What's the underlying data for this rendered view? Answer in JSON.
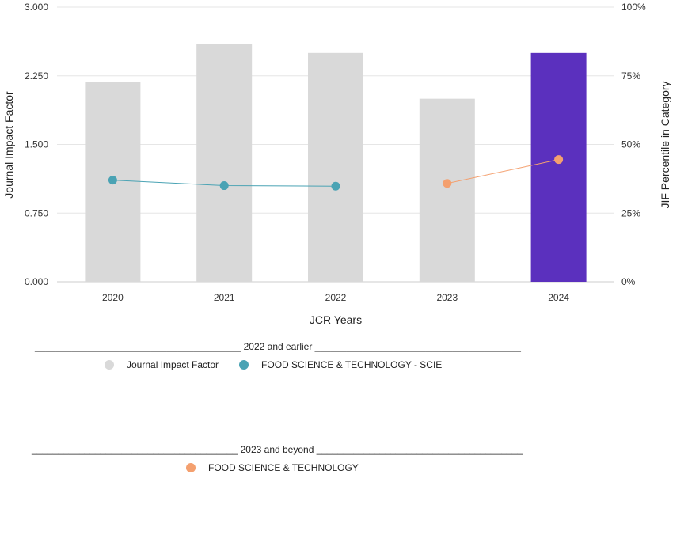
{
  "chart_data": {
    "type": "bar",
    "categories": [
      "2020",
      "2021",
      "2022",
      "2023",
      "2024"
    ],
    "series": [
      {
        "name": "Journal Impact Factor",
        "type": "bar",
        "axis": "left",
        "values": [
          2.18,
          2.6,
          2.5,
          2.0,
          2.5
        ],
        "colors": [
          "#d9d9d9",
          "#d9d9d9",
          "#d9d9d9",
          "#d9d9d9",
          "#5b30be"
        ]
      },
      {
        "name": "FOOD SCIENCE & TECHNOLOGY - SCIE",
        "type": "line",
        "axis": "right",
        "unit": "percent",
        "color": "#4aa3b4",
        "points": [
          {
            "x": "2020",
            "y": 37
          },
          {
            "x": "2021",
            "y": 35
          },
          {
            "x": "2022",
            "y": 34.8
          }
        ]
      },
      {
        "name": "FOOD SCIENCE & TECHNOLOGY",
        "type": "line",
        "axis": "right",
        "unit": "percent",
        "color": "#f4a06f",
        "points": [
          {
            "x": "2023",
            "y": 35.8
          },
          {
            "x": "2024",
            "y": 44.5
          }
        ]
      }
    ],
    "ylabel": "Journal Impact Factor",
    "y2label": "JIF Percentile in Category",
    "xlabel": "JCR Years",
    "ylim": [
      0,
      3
    ],
    "y2lim": [
      0,
      100
    ],
    "yticks": [
      "0.000",
      "0.750",
      "1.500",
      "2.250",
      "3.000"
    ],
    "y2ticks": [
      "0%",
      "25%",
      "50%",
      "75%",
      "100%"
    ],
    "grid": true
  },
  "legend": {
    "group1_label": "_______________________________________ 2022 and earlier _______________________________________",
    "group1_items": [
      {
        "label": "Journal Impact Factor",
        "color": "#d9d9d9"
      },
      {
        "label": "FOOD SCIENCE & TECHNOLOGY - SCIE",
        "color": "#4aa3b4"
      }
    ],
    "group2_label": "_______________________________________ 2023 and beyond _______________________________________",
    "group2_items": [
      {
        "label": "FOOD SCIENCE & TECHNOLOGY",
        "color": "#f4a06f"
      }
    ]
  }
}
